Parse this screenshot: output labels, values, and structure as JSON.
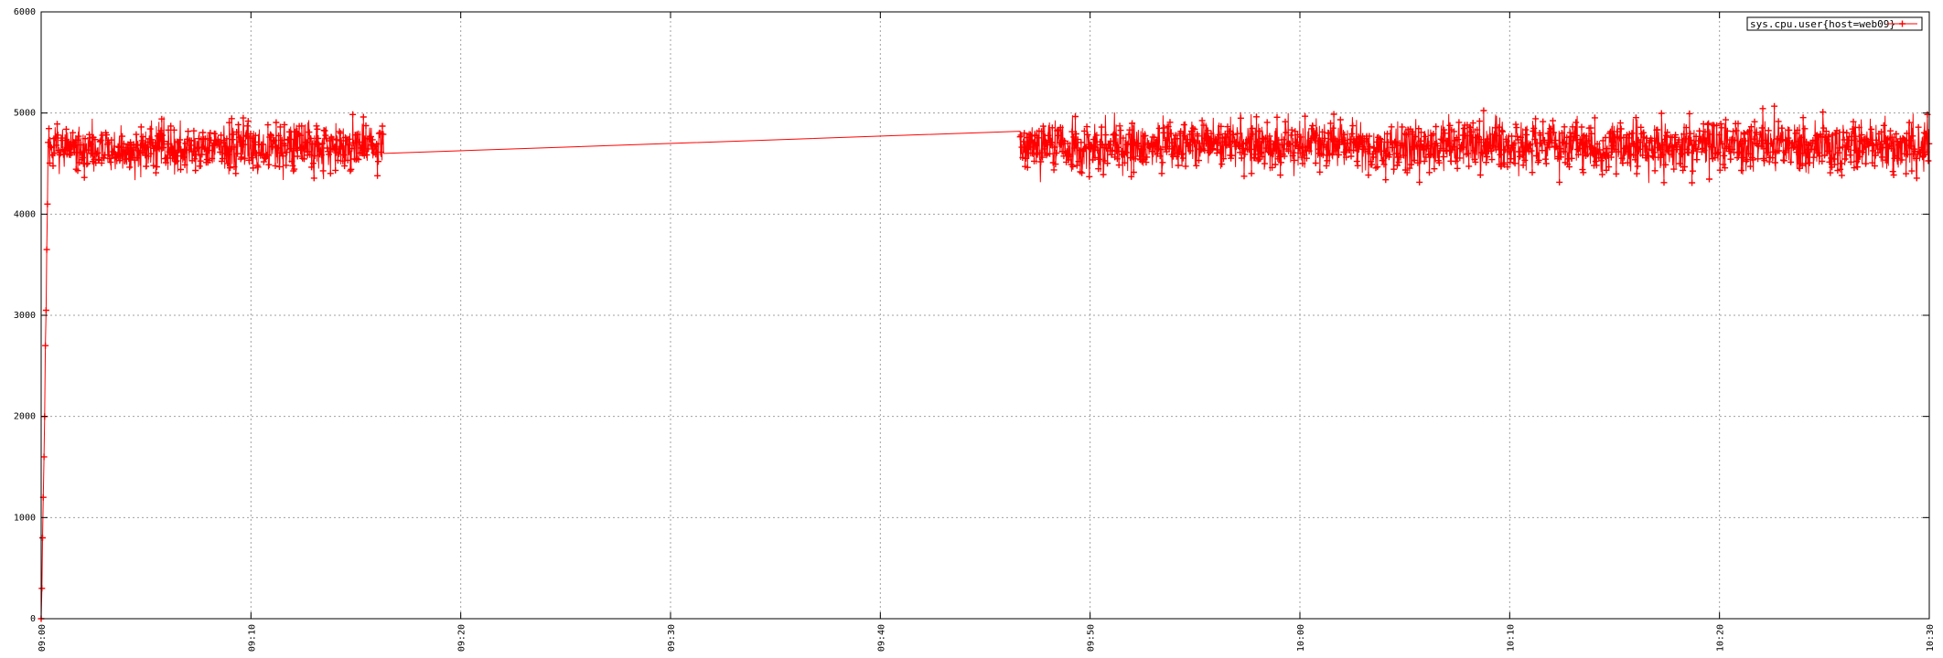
{
  "chart_data": {
    "type": "scatter",
    "title": "",
    "xlabel": "",
    "ylabel": "",
    "x_ticks": [
      "09:00",
      "09:10",
      "09:20",
      "09:30",
      "09:40",
      "09:50",
      "10:00",
      "10:10",
      "10:20",
      "10:30"
    ],
    "y_ticks": [
      0,
      1000,
      2000,
      3000,
      4000,
      5000,
      6000
    ],
    "xlim": [
      "09:00",
      "10:30"
    ],
    "ylim": [
      0,
      6000
    ],
    "grid": true,
    "legend": "top-right",
    "series": [
      {
        "name": "sys.cpu.user{host=web09}",
        "color": "#ff0000",
        "marker": "plus",
        "line": true,
        "startup_points": [
          {
            "t": "09:00:00",
            "y": 0
          },
          {
            "t": "09:00:02",
            "y": 300
          },
          {
            "t": "09:00:04",
            "y": 800
          },
          {
            "t": "09:00:06",
            "y": 1200
          },
          {
            "t": "09:00:08",
            "y": 1600
          },
          {
            "t": "09:00:10",
            "y": 2000
          },
          {
            "t": "09:00:12",
            "y": 2700
          },
          {
            "t": "09:00:14",
            "y": 3050
          },
          {
            "t": "09:00:16",
            "y": 3650
          },
          {
            "t": "09:00:18",
            "y": 4100
          }
        ],
        "segments": [
          {
            "start": "09:00:20",
            "end": "09:16:20",
            "mean": 4650,
            "spread": 240,
            "max": 5150,
            "min": 4150
          },
          {
            "start": "09:46:40",
            "end": "10:30:00",
            "mean": 4680,
            "spread": 250,
            "max": 5150,
            "min": 4150
          }
        ],
        "gap_line": [
          {
            "t": "09:16:20",
            "y": 4600
          },
          {
            "t": "09:46:40",
            "y": 4820
          }
        ]
      }
    ]
  }
}
